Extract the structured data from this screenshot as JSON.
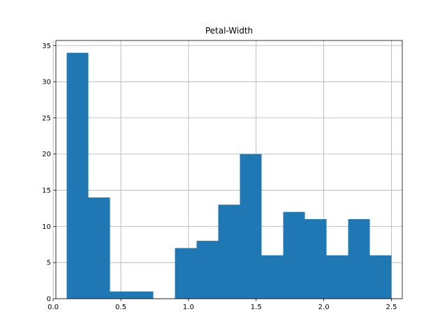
{
  "chart_data": {
    "type": "bar",
    "title": "Petal-Width",
    "xlabel": "",
    "ylabel": "",
    "xlim": [
      0.02,
      2.58
    ],
    "ylim": [
      0,
      35.7
    ],
    "grid": true,
    "bar_color": "#1f77b4",
    "bin_edges": [
      0.1,
      0.26,
      0.42,
      0.58,
      0.74,
      0.9,
      1.06,
      1.22,
      1.38,
      1.54,
      1.7,
      1.86,
      2.02,
      2.18,
      2.34,
      2.5
    ],
    "values": [
      34,
      14,
      1,
      1,
      0,
      7,
      8,
      13,
      20,
      6,
      12,
      11,
      6,
      11,
      6
    ],
    "x_ticks": [
      0.0,
      0.5,
      1.0,
      1.5,
      2.0,
      2.5
    ],
    "x_tick_labels": [
      "0.0",
      "0.5",
      "1.0",
      "1.5",
      "2.0",
      "2.5"
    ],
    "y_ticks": [
      0,
      5,
      10,
      15,
      20,
      25,
      30,
      35
    ],
    "y_tick_labels": [
      "0",
      "5",
      "10",
      "15",
      "20",
      "25",
      "30",
      "35"
    ]
  }
}
